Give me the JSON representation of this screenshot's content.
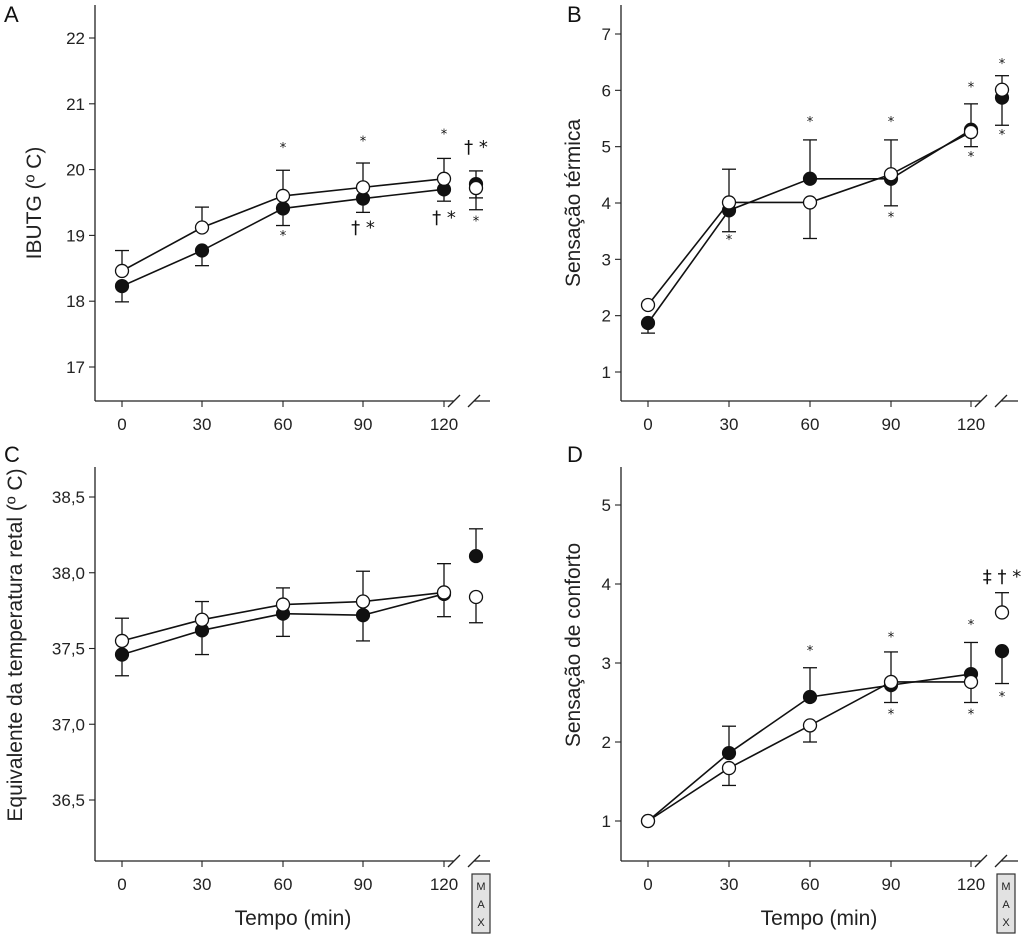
{
  "figure": {
    "xlabel": "Tempo (min)",
    "max_label": [
      "M",
      "A",
      "X"
    ]
  },
  "chart_data": [
    {
      "panel": "A",
      "type": "line",
      "ylabel": "IBUTG (º C)",
      "xlabel": "",
      "x_ticks": [
        "0",
        "30",
        "60",
        "90",
        "120"
      ],
      "x": [
        0,
        30,
        60,
        90,
        120,
        "MAX"
      ],
      "y_ticks": [
        "17",
        "18",
        "19",
        "20",
        "21",
        "22"
      ],
      "ylim": [
        16.5,
        22.5
      ],
      "series": [
        {
          "name": "filled",
          "marker": "filled",
          "values": [
            18.23,
            18.77,
            19.41,
            19.56,
            19.7,
            19.78
          ],
          "err_low": [
            17.99,
            18.54,
            19.15,
            19.35,
            19.52,
            19.57
          ],
          "err_high": null
        },
        {
          "name": "open",
          "marker": "open",
          "values": [
            18.46,
            19.12,
            19.6,
            19.73,
            19.86,
            19.72
          ],
          "err_low": null,
          "err_high": [
            18.77,
            19.43,
            19.99,
            20.1,
            20.17,
            19.98
          ]
        }
      ],
      "annotations": [
        {
          "x": 60,
          "y": 20.27,
          "text": "*"
        },
        {
          "x": 60,
          "y": 18.93,
          "text": "*"
        },
        {
          "x": 90,
          "y": 20.37,
          "text": "*"
        },
        {
          "x": 90,
          "y": 19.03,
          "text": "† *"
        },
        {
          "x": 120,
          "y": 20.47,
          "text": "*"
        },
        {
          "x": 120,
          "y": 19.18,
          "text": "† *"
        },
        {
          "x": "MAX",
          "y": 20.25,
          "text": "† *"
        },
        {
          "x": "MAX",
          "y": 19.15,
          "text": "*"
        }
      ],
      "extra_err": [
        {
          "x": "MAX",
          "low": 19.39,
          "high": 19.78
        }
      ]
    },
    {
      "panel": "B",
      "type": "line",
      "ylabel": "Sensação térmica",
      "xlabel": "",
      "x_ticks": [
        "0",
        "30",
        "60",
        "90",
        "120"
      ],
      "x": [
        0,
        30,
        60,
        90,
        120,
        "MAX"
      ],
      "y_ticks": [
        "1",
        "2",
        "3",
        "4",
        "5",
        "6",
        "7"
      ],
      "ylim": [
        0.5,
        7.5
      ],
      "series": [
        {
          "name": "filled",
          "marker": "filled",
          "values": [
            1.87,
            3.87,
            4.43,
            4.43,
            5.3,
            5.87
          ],
          "err_low": [
            1.69,
            null,
            null,
            3.95,
            5.0,
            5.38
          ],
          "err_high": [
            null,
            null,
            5.12,
            null,
            null,
            null
          ]
        },
        {
          "name": "open",
          "marker": "open",
          "values": [
            2.19,
            4.01,
            4.01,
            4.51,
            5.26,
            6.01
          ],
          "err_low": [
            null,
            3.49,
            3.37,
            null,
            null,
            null
          ],
          "err_high": [
            null,
            4.6,
            null,
            5.12,
            5.76,
            6.26
          ]
        }
      ],
      "annotations": [
        {
          "x": 30,
          "y": 3.27,
          "text": "*"
        },
        {
          "x": 60,
          "y": 5.37,
          "text": "*"
        },
        {
          "x": 90,
          "y": 5.37,
          "text": "*"
        },
        {
          "x": 90,
          "y": 3.67,
          "text": "*"
        },
        {
          "x": 120,
          "y": 5.98,
          "text": "*"
        },
        {
          "x": 120,
          "y": 4.75,
          "text": "*"
        },
        {
          "x": "MAX",
          "y": 6.4,
          "text": "*"
        },
        {
          "x": "MAX",
          "y": 5.14,
          "text": "*"
        }
      ]
    },
    {
      "panel": "C",
      "type": "line",
      "ylabel": "Equivalente da temperatura retal (º C)",
      "xlabel": "Tempo (min)",
      "x_ticks": [
        "0",
        "30",
        "60",
        "90",
        "120"
      ],
      "x": [
        0,
        30,
        60,
        90,
        120,
        "MAX"
      ],
      "y_ticks": [
        "36,5",
        "37,0",
        "37,5",
        "38,0",
        "38,5"
      ],
      "ylim": [
        36.1,
        38.7
      ],
      "series": [
        {
          "name": "filled",
          "marker": "filled",
          "values": [
            37.46,
            37.62,
            37.73,
            37.72,
            37.86,
            38.11
          ],
          "err_low": [
            37.32,
            37.46,
            37.58,
            37.55,
            37.71,
            null
          ],
          "err_high": [
            null,
            null,
            null,
            null,
            null,
            38.29
          ]
        },
        {
          "name": "open",
          "marker": "open",
          "values": [
            37.55,
            37.69,
            37.79,
            37.81,
            37.87,
            37.84
          ],
          "err_low": [
            null,
            null,
            null,
            null,
            null,
            37.67
          ],
          "err_high": [
            37.7,
            37.81,
            37.9,
            38.01,
            38.06,
            null
          ]
        }
      ],
      "annotations": []
    },
    {
      "panel": "D",
      "type": "line",
      "ylabel": "Sensação de conforto",
      "xlabel": "Tempo (min)",
      "x_ticks": [
        "0",
        "30",
        "60",
        "90",
        "120"
      ],
      "x": [
        0,
        30,
        60,
        90,
        120,
        "MAX"
      ],
      "y_ticks": [
        "1",
        "2",
        "3",
        "4",
        "5"
      ],
      "ylim": [
        0.5,
        5.5
      ],
      "series": [
        {
          "name": "filled",
          "marker": "filled",
          "values": [
            1.0,
            1.86,
            2.57,
            2.72,
            2.86,
            3.15
          ],
          "err_low": [
            null,
            null,
            null,
            null,
            null,
            2.74
          ],
          "err_high": [
            null,
            2.2,
            2.94,
            3.14,
            3.26,
            null
          ]
        },
        {
          "name": "open",
          "marker": "open",
          "values": [
            1.0,
            1.67,
            2.21,
            2.76,
            2.76,
            3.64
          ],
          "err_low": [
            null,
            1.45,
            2.0,
            2.5,
            2.5,
            null
          ],
          "err_high": [
            null,
            null,
            null,
            null,
            null,
            3.89
          ]
        }
      ],
      "annotations": [
        {
          "x": 60,
          "y": 3.1,
          "text": "*"
        },
        {
          "x": 90,
          "y": 3.27,
          "text": "*"
        },
        {
          "x": 90,
          "y": 2.3,
          "text": "*"
        },
        {
          "x": 120,
          "y": 3.43,
          "text": "*"
        },
        {
          "x": 120,
          "y": 2.3,
          "text": "*"
        },
        {
          "x": "MAX",
          "y": 4.02,
          "text": "‡ † *"
        },
        {
          "x": "MAX",
          "y": 2.52,
          "text": "*"
        }
      ]
    }
  ]
}
